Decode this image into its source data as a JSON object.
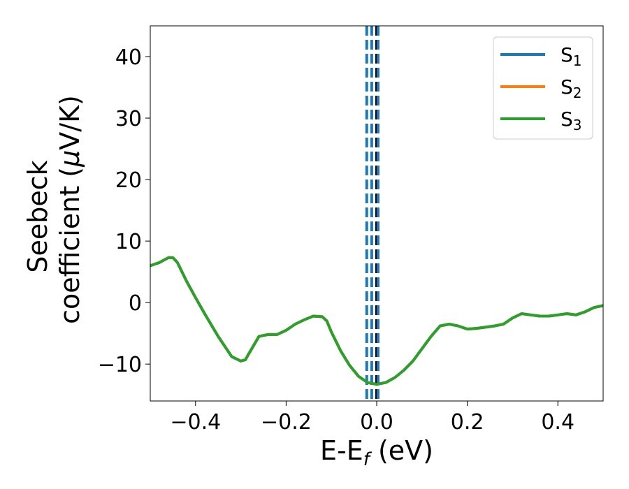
{
  "chart_data": {
    "type": "line",
    "xlabel": {
      "main": "E-E",
      "sub": "f",
      "unit": " (eV)"
    },
    "ylabel": {
      "line1": "Seebeck",
      "line2": "coefficient  (",
      "mu": "μ",
      "unit": "V/K)"
    },
    "xlim": [
      -0.5,
      0.5
    ],
    "ylim": [
      -16,
      45
    ],
    "xticks": [
      -0.4,
      -0.2,
      0.0,
      0.2,
      0.4
    ],
    "xtick_labels": [
      "−0.4",
      "−0.2",
      "0.0",
      "0.2",
      "0.4"
    ],
    "yticks": [
      -10,
      0,
      10,
      20,
      30,
      40
    ],
    "ytick_labels": [
      "−10",
      "0",
      "10",
      "20",
      "30",
      "40"
    ],
    "grid": false,
    "legend_position": "top-right",
    "series": [
      {
        "name": "S",
        "sub": "1",
        "color": "#1f77b4",
        "x": [
          -0.5,
          -0.48,
          -0.46,
          -0.45,
          -0.44,
          -0.42,
          -0.4,
          -0.38,
          -0.35,
          -0.32,
          -0.3,
          -0.29,
          -0.28,
          -0.26,
          -0.24,
          -0.22,
          -0.2,
          -0.18,
          -0.16,
          -0.14,
          -0.12,
          -0.11,
          -0.1,
          -0.08,
          -0.06,
          -0.04,
          -0.02,
          0.0,
          0.02,
          0.04,
          0.06,
          0.08,
          0.1,
          0.12,
          0.14,
          0.16,
          0.18,
          0.2,
          0.22,
          0.24,
          0.26,
          0.28,
          0.3,
          0.32,
          0.34,
          0.36,
          0.38,
          0.4,
          0.42,
          0.44,
          0.46,
          0.48,
          0.5
        ],
        "y": [
          6.0,
          6.5,
          7.3,
          7.3,
          6.5,
          3.5,
          0.8,
          -1.8,
          -5.5,
          -8.8,
          -9.5,
          -9.3,
          -8.0,
          -5.5,
          -5.2,
          -5.2,
          -4.5,
          -3.5,
          -2.8,
          -2.2,
          -2.3,
          -3.0,
          -4.8,
          -7.8,
          -10.2,
          -12.0,
          -13.0,
          -13.3,
          -13.0,
          -12.2,
          -11.0,
          -9.5,
          -7.5,
          -5.5,
          -3.8,
          -3.5,
          -3.8,
          -4.3,
          -4.2,
          -4.0,
          -3.8,
          -3.5,
          -2.5,
          -1.8,
          -2.0,
          -2.2,
          -2.2,
          -2.0,
          -1.8,
          -2.0,
          -1.5,
          -0.8,
          -0.5
        ]
      },
      {
        "name": "S",
        "sub": "2",
        "color": "#ff7f0e",
        "x": [
          -0.5,
          -0.48,
          -0.46,
          -0.45,
          -0.44,
          -0.42,
          -0.4,
          -0.38,
          -0.35,
          -0.32,
          -0.3,
          -0.29,
          -0.28,
          -0.26,
          -0.24,
          -0.22,
          -0.2,
          -0.18,
          -0.16,
          -0.14,
          -0.12,
          -0.11,
          -0.1,
          -0.08,
          -0.06,
          -0.04,
          -0.02,
          0.0,
          0.02,
          0.04,
          0.06,
          0.08,
          0.1,
          0.12,
          0.14,
          0.16,
          0.18,
          0.2,
          0.22,
          0.24,
          0.26,
          0.28,
          0.3,
          0.32,
          0.34,
          0.36,
          0.38,
          0.4,
          0.42,
          0.44,
          0.46,
          0.48,
          0.5
        ],
        "y": [
          6.0,
          6.5,
          7.3,
          7.3,
          6.5,
          3.5,
          0.8,
          -1.8,
          -5.5,
          -8.8,
          -9.5,
          -9.3,
          -8.0,
          -5.5,
          -5.2,
          -5.2,
          -4.5,
          -3.5,
          -2.8,
          -2.2,
          -2.3,
          -3.0,
          -4.8,
          -7.8,
          -10.2,
          -12.0,
          -13.0,
          -13.3,
          -13.0,
          -12.2,
          -11.0,
          -9.5,
          -7.5,
          -5.5,
          -3.8,
          -3.5,
          -3.8,
          -4.3,
          -4.2,
          -4.0,
          -3.8,
          -3.5,
          -2.5,
          -1.8,
          -2.0,
          -2.2,
          -2.2,
          -2.0,
          -1.8,
          -2.0,
          -1.5,
          -0.8,
          -0.5
        ]
      },
      {
        "name": "S",
        "sub": "3",
        "color": "#2ca02c",
        "x": [
          -0.5,
          -0.48,
          -0.46,
          -0.45,
          -0.44,
          -0.42,
          -0.4,
          -0.38,
          -0.35,
          -0.32,
          -0.3,
          -0.29,
          -0.28,
          -0.26,
          -0.24,
          -0.22,
          -0.2,
          -0.18,
          -0.16,
          -0.14,
          -0.12,
          -0.11,
          -0.1,
          -0.08,
          -0.06,
          -0.04,
          -0.02,
          0.0,
          0.02,
          0.04,
          0.06,
          0.08,
          0.1,
          0.12,
          0.14,
          0.16,
          0.18,
          0.2,
          0.22,
          0.24,
          0.26,
          0.28,
          0.3,
          0.32,
          0.34,
          0.36,
          0.38,
          0.4,
          0.42,
          0.44,
          0.46,
          0.48,
          0.5
        ],
        "y": [
          6.0,
          6.5,
          7.3,
          7.3,
          6.5,
          3.5,
          0.8,
          -1.8,
          -5.5,
          -8.8,
          -9.5,
          -9.3,
          -8.0,
          -5.5,
          -5.2,
          -5.2,
          -4.5,
          -3.5,
          -2.8,
          -2.2,
          -2.3,
          -3.0,
          -4.8,
          -7.8,
          -10.2,
          -12.0,
          -13.0,
          -13.3,
          -13.0,
          -12.2,
          -11.0,
          -9.5,
          -7.5,
          -5.5,
          -3.8,
          -3.5,
          -3.8,
          -4.3,
          -4.2,
          -4.0,
          -3.8,
          -3.5,
          -2.5,
          -1.8,
          -2.0,
          -2.2,
          -2.2,
          -2.0,
          -1.8,
          -2.0,
          -1.5,
          -0.8,
          -0.5
        ]
      }
    ],
    "vlines": [
      {
        "x": -0.022,
        "style": "dashed",
        "color": "#1f77b4"
      },
      {
        "x": -0.011,
        "style": "dashed",
        "color": "#1f77b4"
      },
      {
        "x": 0.0,
        "style": "dashed",
        "color": "#000000"
      },
      {
        "x": 0.003,
        "style": "dashed",
        "color": "#1f77b4"
      }
    ]
  }
}
